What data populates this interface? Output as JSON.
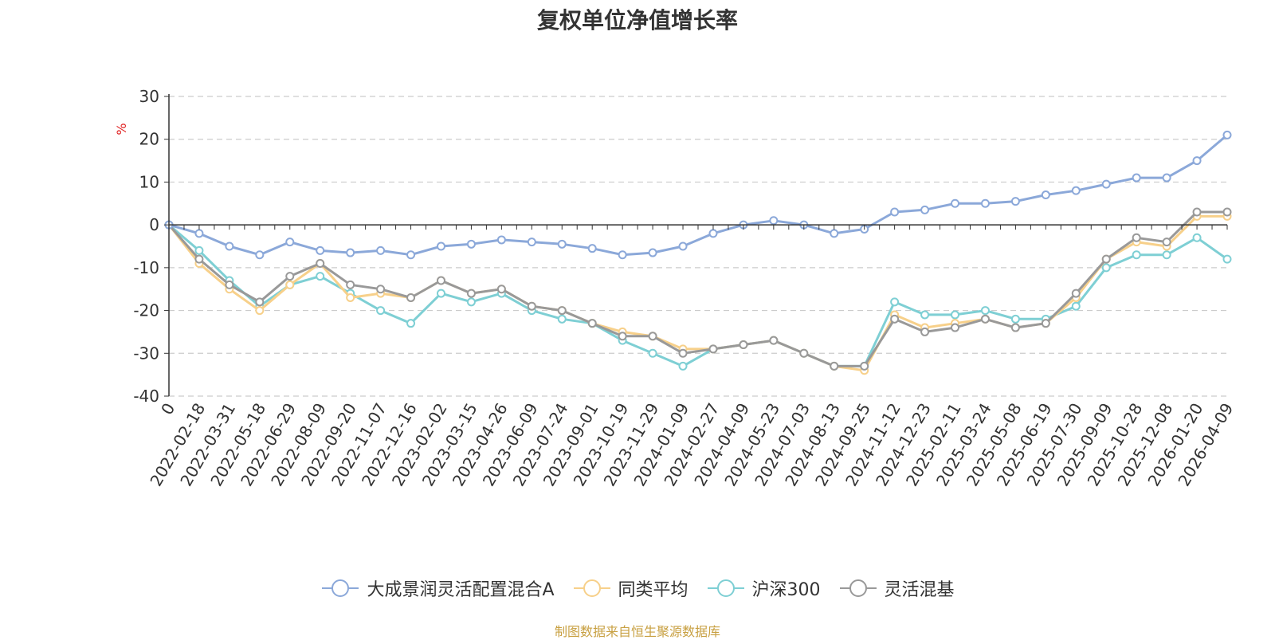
{
  "chart_data": {
    "type": "line",
    "title": "复权单位净值增长率",
    "ylabel": "%",
    "ylim": [
      -40,
      30
    ],
    "yticks": [
      30,
      20,
      10,
      0,
      -10,
      -20,
      -30,
      -40
    ],
    "grid": true,
    "legend_position": "bottom",
    "x": [
      "0",
      "2022-02-18",
      "2022-03-31",
      "2022-05-18",
      "2022-06-29",
      "2022-08-09",
      "2022-09-20",
      "2022-11-07",
      "2022-12-16",
      "2023-02-02",
      "2023-03-15",
      "2023-04-26",
      "2023-06-09",
      "2023-07-24",
      "2023-09-01",
      "2023-10-19",
      "2023-11-29",
      "2024-01-09",
      "2024-02-27",
      "2024-04-09",
      "2024-05-23",
      "2024-07-03",
      "2024-08-13",
      "2024-09-25",
      "2024-11-12",
      "2024-12-23",
      "2025-02-11",
      "2025-03-24",
      "2025-05-08",
      "2025-06-19",
      "2025-07-30",
      "2025-09-09",
      "2025-10-28",
      "2025-12-08",
      "2026-01-20",
      "2026-04-09"
    ],
    "series": [
      {
        "name": "大成景润灵活配置混合A",
        "color": "#8ba8d9",
        "values": [
          0,
          -2,
          -5,
          -7,
          -4,
          -6,
          -6.5,
          -6,
          -7,
          -5,
          -4.5,
          -3.5,
          -4,
          -4.5,
          -5.5,
          -7,
          -6.5,
          -5,
          -2,
          0,
          1,
          0,
          -2,
          -1,
          3,
          3.5,
          5,
          5,
          5.5,
          7,
          8,
          9.5,
          11,
          11,
          15,
          21
        ]
      },
      {
        "name": "同类平均",
        "color": "#f7d08a",
        "values": [
          0,
          -9,
          -15,
          -20,
          -14,
          -9,
          -17,
          -16,
          -17,
          -13,
          -16,
          -15,
          -19,
          -20,
          -23,
          -25,
          -26,
          -29,
          -29,
          -28,
          -27,
          -30,
          -33,
          -34,
          -21,
          -24,
          -23,
          -22,
          -24,
          -23,
          -17,
          -8,
          -4,
          -5,
          2,
          2
        ]
      },
      {
        "name": "沪深300",
        "color": "#7ecfd4",
        "values": [
          0,
          -6,
          -13,
          -19,
          -14,
          -12,
          -16,
          -20,
          -23,
          -16,
          -18,
          -16,
          -20,
          -22,
          -23,
          -27,
          -30,
          -33,
          -29,
          -28,
          -27,
          -30,
          -33,
          -33,
          -18,
          -21,
          -21,
          -20,
          -22,
          -22,
          -19,
          -10,
          -7,
          -7,
          -3,
          -8
        ]
      },
      {
        "name": "灵活混基",
        "color": "#999999",
        "values": [
          0,
          -8,
          -14,
          -18,
          -12,
          -9,
          -14,
          -15,
          -17,
          -13,
          -16,
          -15,
          -19,
          -20,
          -23,
          -26,
          -26,
          -30,
          -29,
          -28,
          -27,
          -30,
          -33,
          -33,
          -22,
          -25,
          -24,
          -22,
          -24,
          -23,
          -16,
          -8,
          -3,
          -4,
          3,
          3
        ]
      }
    ]
  },
  "source_note": "制图数据来自恒生聚源数据库"
}
